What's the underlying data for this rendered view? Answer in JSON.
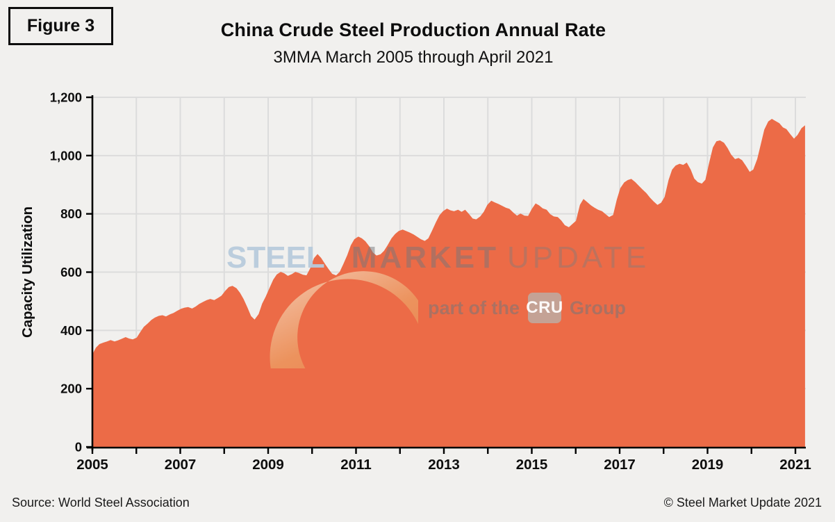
{
  "header": {
    "figure_label": "Figure 3",
    "title": "China Crude Steel Production Annual Rate",
    "subtitle": "3MMA March 2005 through April 2021"
  },
  "footer": {
    "source": "Source: World Steel Association",
    "copyright": "© Steel Market Update 2021"
  },
  "watermark": {
    "word1": "STEEL",
    "word2": "MARKET",
    "word3": "UPDATE",
    "tagline_prefix": "part of the",
    "tagline_logo": "CRU",
    "tagline_suffix": "Group"
  },
  "colors": {
    "background": "#f1f0ee",
    "area_fill": "#ec6b47",
    "area_stroke": "#e05c34",
    "gridline": "#dcdcdc",
    "axis": "#000000",
    "crescent_top": "#f6e0c8",
    "crescent_mid": "#eca266",
    "crescent_bottom": "#e5854c"
  },
  "chart_data": {
    "type": "area",
    "title": "China Crude Steel Production Annual Rate",
    "subtitle": "3MMA March 2005 through April 2021",
    "xlabel": "",
    "ylabel": "Capacity Utilization",
    "ylim": [
      0,
      1200
    ],
    "xlim": [
      2005,
      2021.33
    ],
    "grid": true,
    "legend": false,
    "y_tick_values": [
      0,
      200,
      400,
      600,
      800,
      1000,
      1200
    ],
    "y_tick_labels": [
      "0",
      "200",
      "400",
      "600",
      "800",
      "1,000",
      "1,200"
    ],
    "x_tick_label_years": [
      2005,
      2007,
      2009,
      2011,
      2013,
      2015,
      2017,
      2019,
      2021
    ],
    "x_tick_labels": [
      "2005",
      "2007",
      "2009",
      "2011",
      "2013",
      "2015",
      "2017",
      "2019",
      "2021"
    ],
    "x_minor_tick_years": [
      2005,
      2006,
      2007,
      2008,
      2009,
      2010,
      2011,
      2012,
      2013,
      2014,
      2015,
      2016,
      2017,
      2018,
      2019,
      2020,
      2021
    ],
    "series": [
      {
        "name": "Capacity Utilization",
        "points": [
          [
            2005.17,
            318
          ],
          [
            2005.25,
            341
          ],
          [
            2005.33,
            353
          ],
          [
            2005.42,
            358
          ],
          [
            2005.5,
            362
          ],
          [
            2005.58,
            367
          ],
          [
            2005.67,
            362
          ],
          [
            2005.75,
            366
          ],
          [
            2005.83,
            371
          ],
          [
            2005.92,
            377
          ],
          [
            2006.0,
            372
          ],
          [
            2006.08,
            369
          ],
          [
            2006.17,
            375
          ],
          [
            2006.25,
            394
          ],
          [
            2006.33,
            412
          ],
          [
            2006.42,
            424
          ],
          [
            2006.5,
            436
          ],
          [
            2006.58,
            444
          ],
          [
            2006.67,
            450
          ],
          [
            2006.75,
            452
          ],
          [
            2006.83,
            448
          ],
          [
            2006.92,
            455
          ],
          [
            2007.0,
            460
          ],
          [
            2007.08,
            467
          ],
          [
            2007.17,
            474
          ],
          [
            2007.25,
            478
          ],
          [
            2007.33,
            480
          ],
          [
            2007.42,
            475
          ],
          [
            2007.5,
            482
          ],
          [
            2007.58,
            491
          ],
          [
            2007.67,
            498
          ],
          [
            2007.75,
            504
          ],
          [
            2007.83,
            508
          ],
          [
            2007.92,
            504
          ],
          [
            2008.0,
            511
          ],
          [
            2008.08,
            519
          ],
          [
            2008.17,
            536
          ],
          [
            2008.25,
            549
          ],
          [
            2008.33,
            553
          ],
          [
            2008.42,
            545
          ],
          [
            2008.5,
            529
          ],
          [
            2008.58,
            508
          ],
          [
            2008.67,
            478
          ],
          [
            2008.75,
            449
          ],
          [
            2008.83,
            437
          ],
          [
            2008.92,
            456
          ],
          [
            2009.0,
            492
          ],
          [
            2009.08,
            516
          ],
          [
            2009.17,
            547
          ],
          [
            2009.25,
            574
          ],
          [
            2009.33,
            592
          ],
          [
            2009.42,
            601
          ],
          [
            2009.5,
            596
          ],
          [
            2009.58,
            587
          ],
          [
            2009.67,
            593
          ],
          [
            2009.75,
            601
          ],
          [
            2009.83,
            597
          ],
          [
            2009.92,
            591
          ],
          [
            2010.0,
            589
          ],
          [
            2010.08,
            612
          ],
          [
            2010.17,
            648
          ],
          [
            2010.25,
            662
          ],
          [
            2010.33,
            649
          ],
          [
            2010.42,
            628
          ],
          [
            2010.5,
            610
          ],
          [
            2010.58,
            594
          ],
          [
            2010.67,
            589
          ],
          [
            2010.75,
            601
          ],
          [
            2010.83,
            627
          ],
          [
            2010.92,
            658
          ],
          [
            2011.0,
            692
          ],
          [
            2011.08,
            713
          ],
          [
            2011.17,
            722
          ],
          [
            2011.25,
            716
          ],
          [
            2011.33,
            706
          ],
          [
            2011.42,
            688
          ],
          [
            2011.5,
            667
          ],
          [
            2011.58,
            657
          ],
          [
            2011.67,
            661
          ],
          [
            2011.75,
            673
          ],
          [
            2011.83,
            692
          ],
          [
            2011.92,
            716
          ],
          [
            2012.0,
            731
          ],
          [
            2012.08,
            741
          ],
          [
            2012.17,
            746
          ],
          [
            2012.25,
            741
          ],
          [
            2012.33,
            736
          ],
          [
            2012.42,
            729
          ],
          [
            2012.5,
            721
          ],
          [
            2012.58,
            713
          ],
          [
            2012.67,
            707
          ],
          [
            2012.75,
            716
          ],
          [
            2012.83,
            741
          ],
          [
            2012.92,
            771
          ],
          [
            2013.0,
            795
          ],
          [
            2013.08,
            809
          ],
          [
            2013.17,
            818
          ],
          [
            2013.25,
            812
          ],
          [
            2013.33,
            809
          ],
          [
            2013.42,
            814
          ],
          [
            2013.5,
            807
          ],
          [
            2013.58,
            814
          ],
          [
            2013.67,
            799
          ],
          [
            2013.75,
            784
          ],
          [
            2013.83,
            781
          ],
          [
            2013.92,
            791
          ],
          [
            2014.0,
            807
          ],
          [
            2014.08,
            831
          ],
          [
            2014.17,
            845
          ],
          [
            2014.25,
            839
          ],
          [
            2014.33,
            834
          ],
          [
            2014.42,
            827
          ],
          [
            2014.5,
            821
          ],
          [
            2014.58,
            817
          ],
          [
            2014.67,
            804
          ],
          [
            2014.75,
            794
          ],
          [
            2014.83,
            801
          ],
          [
            2014.92,
            794
          ],
          [
            2015.0,
            793
          ],
          [
            2015.08,
            816
          ],
          [
            2015.17,
            836
          ],
          [
            2015.25,
            829
          ],
          [
            2015.33,
            819
          ],
          [
            2015.42,
            814
          ],
          [
            2015.5,
            799
          ],
          [
            2015.58,
            791
          ],
          [
            2015.67,
            789
          ],
          [
            2015.75,
            777
          ],
          [
            2015.83,
            761
          ],
          [
            2015.92,
            754
          ],
          [
            2016.0,
            765
          ],
          [
            2016.08,
            776
          ],
          [
            2016.17,
            831
          ],
          [
            2016.25,
            851
          ],
          [
            2016.33,
            841
          ],
          [
            2016.42,
            829
          ],
          [
            2016.5,
            821
          ],
          [
            2016.58,
            814
          ],
          [
            2016.67,
            809
          ],
          [
            2016.75,
            799
          ],
          [
            2016.83,
            789
          ],
          [
            2016.92,
            796
          ],
          [
            2017.0,
            848
          ],
          [
            2017.08,
            888
          ],
          [
            2017.17,
            908
          ],
          [
            2017.25,
            916
          ],
          [
            2017.33,
            920
          ],
          [
            2017.42,
            909
          ],
          [
            2017.5,
            896
          ],
          [
            2017.58,
            884
          ],
          [
            2017.67,
            871
          ],
          [
            2017.75,
            856
          ],
          [
            2017.83,
            843
          ],
          [
            2017.92,
            831
          ],
          [
            2018.0,
            838
          ],
          [
            2018.08,
            858
          ],
          [
            2018.17,
            916
          ],
          [
            2018.25,
            952
          ],
          [
            2018.33,
            966
          ],
          [
            2018.42,
            972
          ],
          [
            2018.5,
            968
          ],
          [
            2018.58,
            976
          ],
          [
            2018.67,
            952
          ],
          [
            2018.75,
            921
          ],
          [
            2018.83,
            909
          ],
          [
            2018.92,
            904
          ],
          [
            2019.0,
            917
          ],
          [
            2019.08,
            972
          ],
          [
            2019.17,
            1028
          ],
          [
            2019.25,
            1049
          ],
          [
            2019.33,
            1052
          ],
          [
            2019.42,
            1044
          ],
          [
            2019.5,
            1026
          ],
          [
            2019.58,
            1004
          ],
          [
            2019.67,
            988
          ],
          [
            2019.75,
            992
          ],
          [
            2019.83,
            984
          ],
          [
            2019.92,
            964
          ],
          [
            2020.0,
            944
          ],
          [
            2020.08,
            952
          ],
          [
            2020.17,
            988
          ],
          [
            2020.25,
            1038
          ],
          [
            2020.33,
            1089
          ],
          [
            2020.42,
            1117
          ],
          [
            2020.5,
            1126
          ],
          [
            2020.58,
            1119
          ],
          [
            2020.67,
            1111
          ],
          [
            2020.75,
            1097
          ],
          [
            2020.83,
            1091
          ],
          [
            2020.92,
            1073
          ],
          [
            2021.0,
            1058
          ],
          [
            2021.08,
            1071
          ],
          [
            2021.17,
            1094
          ],
          [
            2021.25,
            1104
          ]
        ]
      }
    ]
  }
}
